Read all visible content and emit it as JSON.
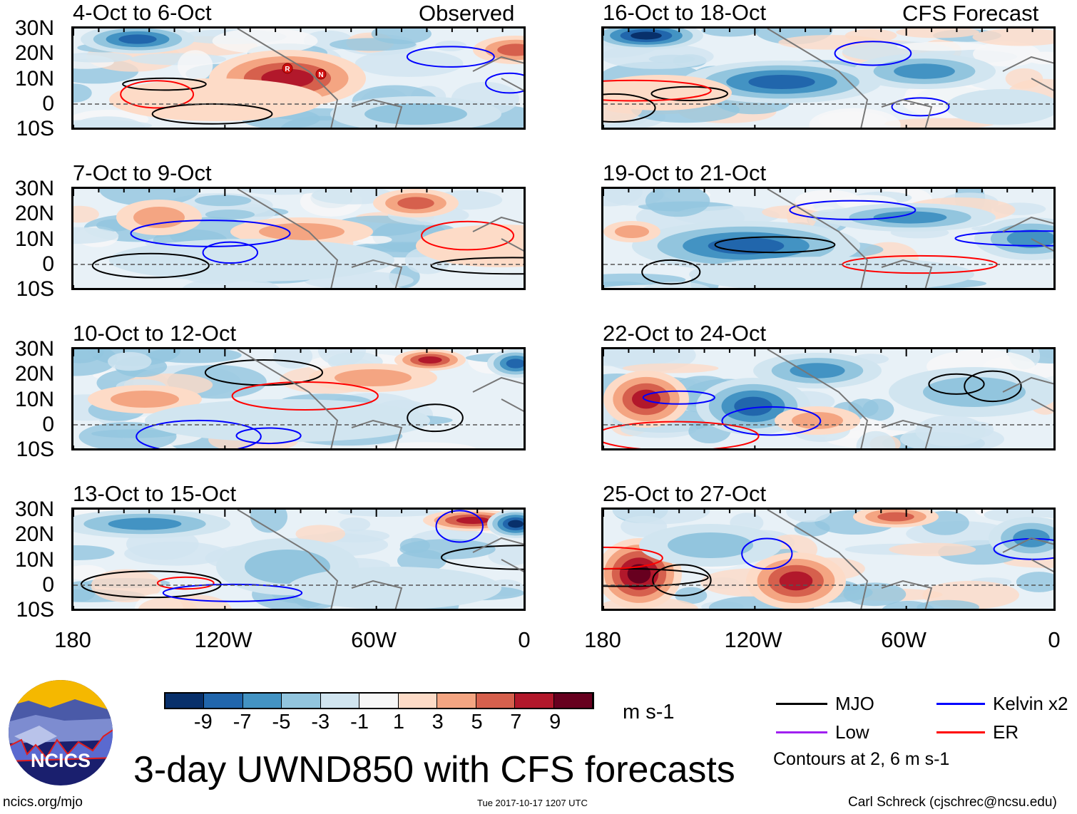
{
  "title": "3-day UWND850 with CFS forecasts",
  "left_column_label": "Observed",
  "right_column_label": "CFS Forecast",
  "panels_observed": [
    "4-Oct to 6-Oct",
    "7-Oct to 9-Oct",
    "10-Oct to 12-Oct",
    "13-Oct to 15-Oct"
  ],
  "panels_forecast": [
    "16-Oct to 18-Oct",
    "19-Oct to 21-Oct",
    "22-Oct to 24-Oct",
    "25-Oct to 27-Oct"
  ],
  "lat_labels": [
    "30N",
    "20N",
    "10N",
    "0",
    "10S"
  ],
  "lon_labels": [
    "180",
    "120W",
    "60W",
    "0"
  ],
  "storm_markers": [
    "R",
    "N"
  ],
  "colorbar": {
    "colors": [
      "#08306b",
      "#2166ac",
      "#4393c3",
      "#92c5de",
      "#d1e5f0",
      "#f7f7f7",
      "#fddbc7",
      "#f4a582",
      "#d6604d",
      "#b2182b",
      "#67001f"
    ],
    "labels": [
      "-9",
      "-7",
      "-5",
      "-3",
      "-1",
      "1",
      "3",
      "5",
      "7",
      "9"
    ],
    "units": "m s-1"
  },
  "legend": {
    "items": [
      {
        "label": "MJO",
        "color": "#000000"
      },
      {
        "label": "Kelvin x2",
        "color": "#0000ff"
      },
      {
        "label": "Low",
        "color": "#a020f0"
      },
      {
        "label": "ER",
        "color": "#ff0000"
      }
    ],
    "note": "Contours at 2, 6 m s-1"
  },
  "logo_text": "NCICS",
  "footer": {
    "url": "ncics.org/mjo",
    "timestamp": "Tue 2017-10-17 1207 UTC",
    "credit": "Carl Schreck (cjschrec@ncsu.edu)"
  }
}
